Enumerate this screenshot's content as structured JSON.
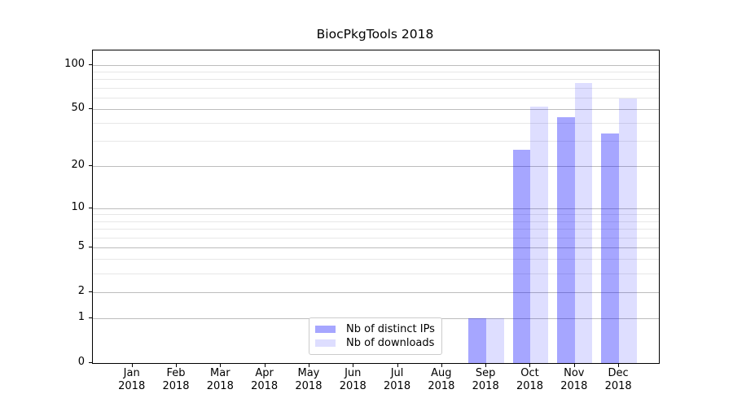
{
  "chart_data": {
    "type": "bar",
    "title": "BiocPkgTools 2018",
    "categories": [
      {
        "month": "Jan",
        "year": "2018"
      },
      {
        "month": "Feb",
        "year": "2018"
      },
      {
        "month": "Mar",
        "year": "2018"
      },
      {
        "month": "Apr",
        "year": "2018"
      },
      {
        "month": "May",
        "year": "2018"
      },
      {
        "month": "Jun",
        "year": "2018"
      },
      {
        "month": "Jul",
        "year": "2018"
      },
      {
        "month": "Aug",
        "year": "2018"
      },
      {
        "month": "Sep",
        "year": "2018"
      },
      {
        "month": "Oct",
        "year": "2018"
      },
      {
        "month": "Nov",
        "year": "2018"
      },
      {
        "month": "Dec",
        "year": "2018"
      }
    ],
    "series": [
      {
        "name": "Nb of distinct IPs",
        "color": "#0000ff59",
        "solid_color": "#a6a6ff",
        "values": [
          0,
          0,
          0,
          0,
          0,
          0,
          0,
          0,
          1,
          26,
          44,
          34
        ]
      },
      {
        "name": "Nb of downloads",
        "color": "#0000ff21",
        "solid_color": "#dedeff",
        "values": [
          0,
          0,
          0,
          0,
          0,
          0,
          0,
          0,
          1,
          52,
          75,
          59
        ]
      }
    ],
    "y_axis": {
      "scale": "log1p",
      "ticks": [
        0,
        1,
        2,
        5,
        10,
        20,
        50,
        100
      ],
      "minor_gridlines": [
        3,
        4,
        6,
        7,
        8,
        9,
        30,
        40,
        60,
        70,
        80,
        90
      ],
      "ylim": [
        0,
        126
      ]
    },
    "grid": {
      "major_color": "#bdbdbd",
      "minor_color": "#e7e7e7"
    },
    "legend": {
      "position": "lower-center",
      "border_color": "#cccccc"
    }
  }
}
